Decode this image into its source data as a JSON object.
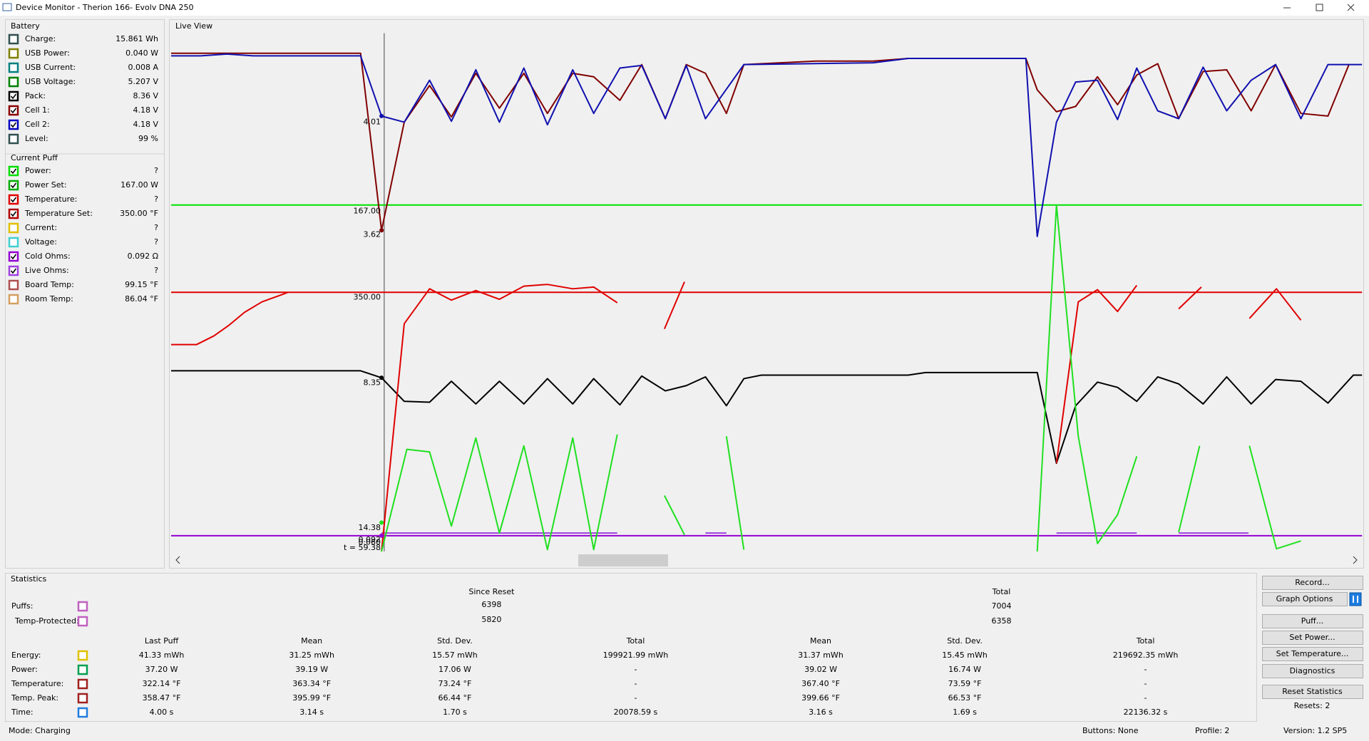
{
  "window": {
    "title": "Device Monitor - Therion 166- Evolv DNA 250"
  },
  "battery": {
    "title": "Battery",
    "rows": [
      {
        "label": "Charge:",
        "value": "15.861 Wh",
        "checked": false,
        "color": "#2f4f4f"
      },
      {
        "label": "USB Power:",
        "value": "0.040 W",
        "checked": false,
        "color": "#808000"
      },
      {
        "label": "USB Current:",
        "value": "0.008 A",
        "checked": false,
        "color": "#008080"
      },
      {
        "label": "USB Voltage:",
        "value": "5.207 V",
        "checked": false,
        "color": "#008000"
      },
      {
        "label": "Pack:",
        "value": "8.36 V",
        "checked": true,
        "color": "#000000"
      },
      {
        "label": "Cell 1:",
        "value": "4.18 V",
        "checked": true,
        "color": "#8b0000"
      },
      {
        "label": "Cell 2:",
        "value": "4.18 V",
        "checked": true,
        "color": "#0000c0"
      },
      {
        "label": "Level:",
        "value": "99 %",
        "checked": false,
        "color": "#2f4f4f"
      }
    ]
  },
  "current_puff": {
    "title": "Current Puff",
    "rows": [
      {
        "label": "Power:",
        "value": "?",
        "checked": true,
        "color": "#00dd00"
      },
      {
        "label": "Power Set:",
        "value": "167.00 W",
        "checked": true,
        "color": "#00aa00"
      },
      {
        "label": "Temperature:",
        "value": "?",
        "checked": true,
        "color": "#e00000"
      },
      {
        "label": "Temperature Set:",
        "value": "350.00 °F",
        "checked": true,
        "color": "#b00000"
      },
      {
        "label": "Current:",
        "value": "?",
        "checked": false,
        "color": "#e0c000"
      },
      {
        "label": "Voltage:",
        "value": "?",
        "checked": false,
        "color": "#40d0d0"
      },
      {
        "label": "Cold Ohms:",
        "value": "0.092 Ω",
        "checked": true,
        "color": "#9400d3"
      },
      {
        "label": "Live Ohms:",
        "value": "?",
        "checked": true,
        "color": "#a040e0"
      },
      {
        "label": "Board Temp:",
        "value": "99.15 °F",
        "checked": false,
        "color": "#b05050"
      },
      {
        "label": "Room Temp:",
        "value": "86.04 °F",
        "checked": false,
        "color": "#d2a060"
      }
    ]
  },
  "live_view": {
    "title": "Live View",
    "markers": [
      "4.01",
      "167.00",
      "3.62",
      "350.00",
      "8.35",
      "14.38",
      "0.092",
      "0.060",
      "t = 59.38"
    ]
  },
  "statistics": {
    "title": "Statistics",
    "since_reset": "Since Reset",
    "total": "Total",
    "counts": [
      {
        "label": "Puffs:",
        "since_reset": "6398",
        "total": "7004",
        "color": "#c060c0"
      },
      {
        "label": "Temp-Protected:",
        "since_reset": "5820",
        "total": "6358",
        "color": "#c060c0"
      }
    ],
    "columns": [
      "Last Puff",
      "Mean",
      "Std. Dev.",
      "Total",
      "Mean",
      "Std. Dev.",
      "Total"
    ],
    "rows": [
      {
        "label": "Energy:",
        "color": "#e0c000",
        "values": [
          "41.33 mWh",
          "31.25 mWh",
          "15.57 mWh",
          "199921.99 mWh",
          "31.37 mWh",
          "15.45 mWh",
          "219692.35 mWh"
        ]
      },
      {
        "label": "Power:",
        "color": "#00a050",
        "values": [
          "37.20 W",
          "39.19 W",
          "17.06 W",
          "-",
          "39.02 W",
          "16.74 W",
          "-"
        ]
      },
      {
        "label": "Temperature:",
        "color": "#a02020",
        "values": [
          "322.14 °F",
          "363.34 °F",
          "73.24 °F",
          "-",
          "367.40 °F",
          "73.59 °F",
          "-"
        ]
      },
      {
        "label": "Temp. Peak:",
        "color": "#a02020",
        "values": [
          "358.47 °F",
          "395.99 °F",
          "66.44 °F",
          "-",
          "399.66 °F",
          "66.53 °F",
          "-"
        ]
      },
      {
        "label": "Time:",
        "color": "#1e7de0",
        "values": [
          "4.00 s",
          "3.14 s",
          "1.70 s",
          "20078.59 s",
          "3.16 s",
          "1.69 s",
          "22136.32 s"
        ]
      }
    ]
  },
  "buttons": [
    "Record...",
    "Graph Options",
    "Puff...",
    "Set Power...",
    "Set Temperature...",
    "Diagnostics",
    "Reset Statistics"
  ],
  "resets": "Resets: 2",
  "status": {
    "mode": "Mode: Charging",
    "buttons": "Buttons: None",
    "profile": "Profile: 2",
    "version": "Version: 1.2 SP5"
  }
}
